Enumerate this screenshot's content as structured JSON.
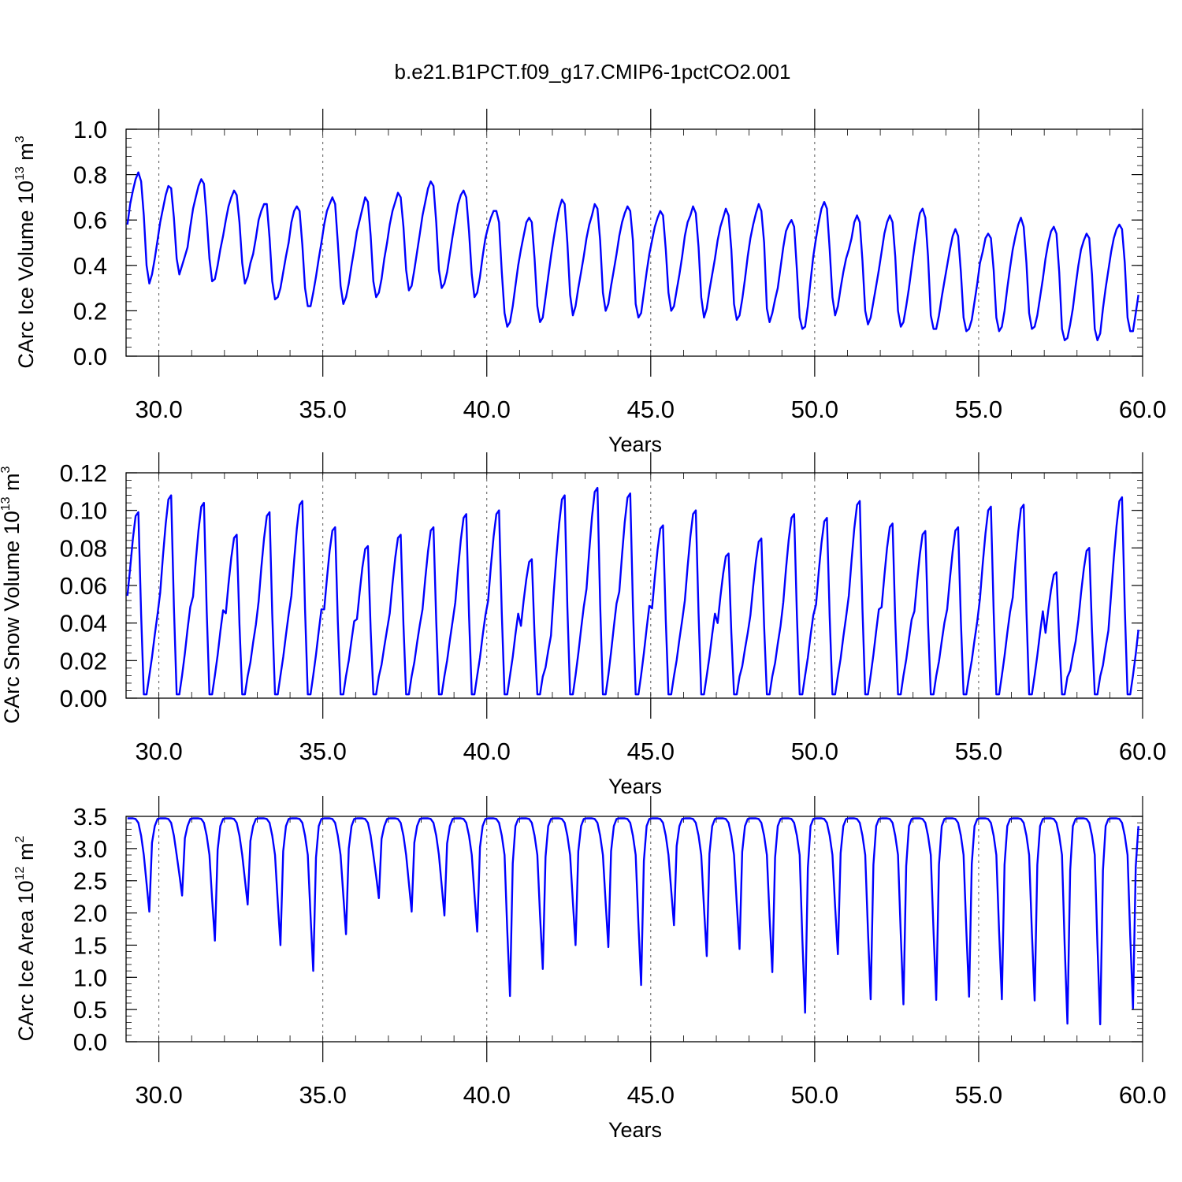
{
  "figure_title": "b.e21.B1PCT.f09_g17.CMIP6-1pctCO2.001",
  "colors": {
    "series": "#0000ff",
    "frame": "#000000",
    "grid": "#555555"
  },
  "chart_data": [
    {
      "type": "line",
      "title": "b.e21.B1PCT.f09_g17.CMIP6-1pctCO2.001",
      "xlabel": "Years",
      "ylabel": "CArc Ice Volume 10",
      "ylabel_exp": "13",
      "ylabel_unit": " m",
      "ylabel_unit_exp": "3",
      "xlim": [
        29.0,
        60.0
      ],
      "ylim": [
        0.0,
        1.0
      ],
      "xticks": [
        30,
        35,
        40,
        45,
        50,
        55,
        60
      ],
      "xtick_labels": [
        "30.0",
        "35.0",
        "40.0",
        "45.0",
        "50.0",
        "55.0",
        "60.0"
      ],
      "yticks": [
        0.0,
        0.2,
        0.4,
        0.6,
        0.8,
        1.0
      ],
      "ytick_labels": [
        "0.0",
        "0.2",
        "0.4",
        "0.6",
        "0.8",
        "1.0"
      ],
      "ytick_minor_step": 0.04,
      "grid": "x-dashed",
      "series": [
        {
          "x_start": 29.0417,
          "x_step": 0.08333,
          "values": [
            0.58,
            0.67,
            0.73,
            0.78,
            0.81,
            0.77,
            0.62,
            0.4,
            0.32,
            0.36,
            0.43,
            0.51,
            0.59,
            0.65,
            0.71,
            0.75,
            0.74,
            0.61,
            0.43,
            0.36,
            0.4,
            0.44,
            0.48,
            0.57,
            0.65,
            0.7,
            0.75,
            0.78,
            0.76,
            0.61,
            0.43,
            0.33,
            0.34,
            0.4,
            0.47,
            0.53,
            0.6,
            0.66,
            0.7,
            0.73,
            0.71,
            0.59,
            0.41,
            0.32,
            0.35,
            0.41,
            0.45,
            0.52,
            0.6,
            0.64,
            0.67,
            0.67,
            0.52,
            0.33,
            0.25,
            0.26,
            0.3,
            0.37,
            0.44,
            0.5,
            0.59,
            0.64,
            0.66,
            0.64,
            0.49,
            0.3,
            0.22,
            0.22,
            0.28,
            0.35,
            0.43,
            0.5,
            0.58,
            0.64,
            0.67,
            0.7,
            0.67,
            0.5,
            0.31,
            0.23,
            0.26,
            0.32,
            0.4,
            0.47,
            0.55,
            0.6,
            0.65,
            0.7,
            0.68,
            0.53,
            0.33,
            0.26,
            0.28,
            0.34,
            0.43,
            0.5,
            0.58,
            0.64,
            0.68,
            0.72,
            0.7,
            0.57,
            0.38,
            0.29,
            0.31,
            0.38,
            0.46,
            0.54,
            0.62,
            0.68,
            0.74,
            0.77,
            0.75,
            0.59,
            0.38,
            0.3,
            0.32,
            0.37,
            0.45,
            0.53,
            0.6,
            0.67,
            0.71,
            0.73,
            0.7,
            0.55,
            0.36,
            0.26,
            0.28,
            0.35,
            0.44,
            0.52,
            0.57,
            0.61,
            0.64,
            0.64,
            0.59,
            0.37,
            0.19,
            0.13,
            0.15,
            0.22,
            0.31,
            0.4,
            0.47,
            0.53,
            0.59,
            0.61,
            0.59,
            0.43,
            0.22,
            0.15,
            0.17,
            0.26,
            0.35,
            0.44,
            0.52,
            0.59,
            0.65,
            0.69,
            0.67,
            0.5,
            0.27,
            0.18,
            0.22,
            0.3,
            0.37,
            0.44,
            0.52,
            0.58,
            0.62,
            0.67,
            0.65,
            0.51,
            0.28,
            0.2,
            0.23,
            0.31,
            0.38,
            0.45,
            0.53,
            0.59,
            0.63,
            0.66,
            0.64,
            0.51,
            0.23,
            0.17,
            0.19,
            0.28,
            0.37,
            0.45,
            0.51,
            0.57,
            0.61,
            0.64,
            0.62,
            0.47,
            0.28,
            0.2,
            0.22,
            0.29,
            0.36,
            0.44,
            0.53,
            0.59,
            0.62,
            0.66,
            0.63,
            0.48,
            0.26,
            0.17,
            0.21,
            0.29,
            0.36,
            0.43,
            0.51,
            0.57,
            0.61,
            0.65,
            0.62,
            0.47,
            0.23,
            0.16,
            0.18,
            0.25,
            0.34,
            0.44,
            0.52,
            0.58,
            0.63,
            0.67,
            0.64,
            0.5,
            0.21,
            0.15,
            0.19,
            0.25,
            0.3,
            0.39,
            0.48,
            0.55,
            0.58,
            0.6,
            0.57,
            0.38,
            0.17,
            0.12,
            0.13,
            0.22,
            0.33,
            0.44,
            0.52,
            0.59,
            0.65,
            0.68,
            0.65,
            0.47,
            0.26,
            0.18,
            0.22,
            0.3,
            0.37,
            0.43,
            0.47,
            0.52,
            0.59,
            0.62,
            0.59,
            0.42,
            0.2,
            0.14,
            0.17,
            0.24,
            0.31,
            0.38,
            0.46,
            0.54,
            0.59,
            0.62,
            0.59,
            0.44,
            0.2,
            0.13,
            0.15,
            0.22,
            0.3,
            0.39,
            0.48,
            0.56,
            0.63,
            0.65,
            0.61,
            0.44,
            0.18,
            0.12,
            0.12,
            0.18,
            0.26,
            0.33,
            0.4,
            0.47,
            0.53,
            0.56,
            0.53,
            0.37,
            0.17,
            0.11,
            0.12,
            0.16,
            0.24,
            0.32,
            0.41,
            0.46,
            0.52,
            0.54,
            0.52,
            0.38,
            0.17,
            0.11,
            0.13,
            0.2,
            0.3,
            0.39,
            0.47,
            0.53,
            0.58,
            0.61,
            0.57,
            0.41,
            0.19,
            0.12,
            0.13,
            0.18,
            0.26,
            0.34,
            0.43,
            0.5,
            0.55,
            0.57,
            0.54,
            0.37,
            0.12,
            0.07,
            0.08,
            0.14,
            0.21,
            0.31,
            0.4,
            0.47,
            0.51,
            0.54,
            0.52,
            0.36,
            0.12,
            0.07,
            0.1,
            0.21,
            0.3,
            0.38,
            0.46,
            0.52,
            0.56,
            0.58,
            0.56,
            0.41,
            0.17,
            0.11,
            0.11,
            0.19,
            0.27
          ]
        }
      ]
    },
    {
      "type": "line",
      "xlabel": "Years",
      "ylabel": "CArc Snow Volume 10",
      "ylabel_exp": "13",
      "ylabel_unit": " m",
      "ylabel_unit_exp": "3",
      "xlim": [
        29.0,
        60.0
      ],
      "ylim": [
        0.0,
        0.12
      ],
      "xticks": [
        30,
        35,
        40,
        45,
        50,
        55,
        60
      ],
      "xtick_labels": [
        "30.0",
        "35.0",
        "40.0",
        "45.0",
        "50.0",
        "55.0",
        "60.0"
      ],
      "yticks": [
        0.0,
        0.02,
        0.04,
        0.06,
        0.08,
        0.1,
        0.12
      ],
      "ytick_labels": [
        "0.00",
        "0.02",
        "0.04",
        "0.06",
        "0.08",
        "0.10",
        "0.12"
      ],
      "ytick_minor_step": 0.004,
      "grid": "x-dashed",
      "series": [
        {
          "x_start": 29.0417,
          "x_step": 0.08333,
          "peaks": [
            0.099,
            0.108,
            0.104,
            0.087,
            0.099,
            0.105,
            0.091,
            0.081,
            0.087,
            0.091,
            0.098,
            0.1,
            0.074,
            0.108,
            0.112,
            0.109,
            0.092,
            0.1,
            0.077,
            0.085,
            0.098,
            0.096,
            0.105,
            0.093,
            0.089,
            0.091,
            0.102,
            0.103,
            0.067,
            0.08,
            0.107
          ],
          "values": []
        }
      ]
    },
    {
      "type": "line",
      "xlabel": "Years",
      "ylabel": "CArc Ice Area 10",
      "ylabel_exp": "12",
      "ylabel_unit": " m",
      "ylabel_unit_exp": "2",
      "xlim": [
        29.0,
        60.0
      ],
      "ylim": [
        0.0,
        3.5
      ],
      "xticks": [
        30,
        35,
        40,
        45,
        50,
        55,
        60
      ],
      "xtick_labels": [
        "30.0",
        "35.0",
        "40.0",
        "45.0",
        "50.0",
        "55.0",
        "60.0"
      ],
      "yticks": [
        0.0,
        0.5,
        1.0,
        1.5,
        2.0,
        2.5,
        3.0,
        3.5
      ],
      "ytick_labels": [
        "0.0",
        "0.5",
        "1.0",
        "1.5",
        "2.0",
        "2.5",
        "3.0",
        "3.5"
      ],
      "ytick_minor_step": 0.1,
      "grid": "x-dashed",
      "series": [
        {
          "x_start": 29.0417,
          "x_step": 0.08333,
          "minima": [
            2.02,
            2.27,
            1.57,
            2.13,
            1.5,
            1.1,
            1.67,
            2.23,
            2.02,
            1.96,
            1.71,
            0.71,
            1.13,
            1.5,
            1.47,
            0.88,
            1.81,
            1.33,
            1.44,
            1.08,
            0.45,
            1.36,
            0.66,
            0.58,
            0.65,
            0.7,
            0.66,
            0.64,
            0.28,
            0.27,
            0.52
          ],
          "values": []
        }
      ]
    }
  ]
}
